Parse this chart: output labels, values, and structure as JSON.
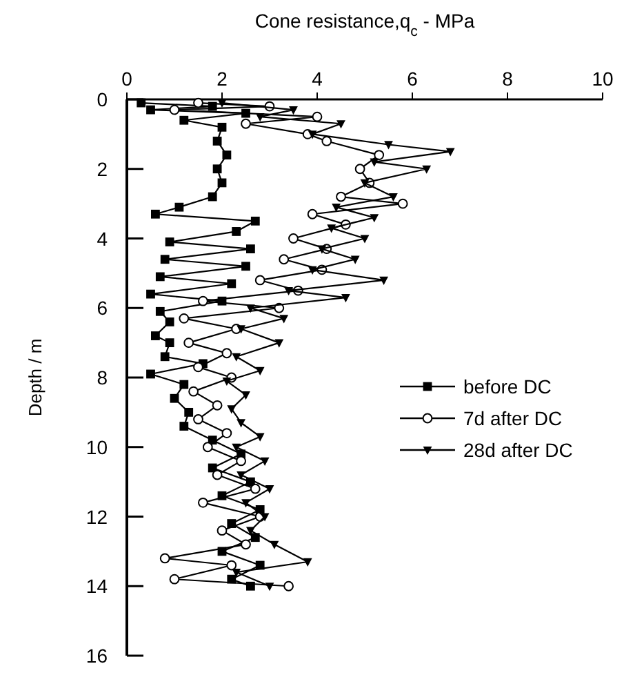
{
  "chart_data": {
    "type": "line",
    "xlabel": "Cone resistance,q$_{c}$ - MPa",
    "ylabel": "Depth / m",
    "xlim": [
      0,
      10
    ],
    "xticks": [
      0,
      2,
      4,
      6,
      8,
      10
    ],
    "ylim": [
      16,
      0
    ],
    "yticks": [
      0,
      2,
      4,
      6,
      8,
      10,
      12,
      14,
      16
    ],
    "legend": "right",
    "line_style": "solid",
    "series": [
      {
        "name": "before DC",
        "color": "#000000",
        "marker": "square",
        "x": [
          0.3,
          1.8,
          0.5,
          2.5,
          1.2,
          2.0,
          1.9,
          2.1,
          1.9,
          2.0,
          1.8,
          1.1,
          0.6,
          2.7,
          2.3,
          0.9,
          2.6,
          0.8,
          2.5,
          0.7,
          2.2,
          0.5,
          2.0,
          0.7,
          0.9,
          0.6,
          0.9,
          0.8,
          1.6,
          0.5,
          1.2,
          1.0,
          1.3,
          1.2,
          1.8,
          2.4,
          1.8,
          2.6,
          2.0,
          2.8,
          2.2,
          2.7,
          2.0,
          2.8,
          2.2,
          2.6
        ],
        "values": [
          0.1,
          0.2,
          0.3,
          0.4,
          0.6,
          0.8,
          1.2,
          1.6,
          2.0,
          2.4,
          2.8,
          3.1,
          3.3,
          3.5,
          3.8,
          4.1,
          4.3,
          4.6,
          4.8,
          5.1,
          5.3,
          5.6,
          5.8,
          6.1,
          6.4,
          6.8,
          7.0,
          7.4,
          7.6,
          7.9,
          8.2,
          8.6,
          9.0,
          9.4,
          9.8,
          10.2,
          10.6,
          11.0,
          11.4,
          11.8,
          12.2,
          12.6,
          13.0,
          13.4,
          13.8,
          14.0
        ]
      },
      {
        "name": "7d after DC",
        "color": "#000000",
        "marker": "circle",
        "x": [
          1.5,
          3.0,
          1.0,
          4.0,
          2.5,
          3.8,
          4.2,
          5.3,
          4.9,
          5.1,
          4.5,
          5.8,
          3.9,
          4.6,
          3.5,
          4.2,
          3.3,
          4.1,
          2.8,
          3.6,
          1.6,
          3.2,
          1.2,
          2.3,
          1.3,
          2.1,
          1.5,
          2.2,
          1.4,
          1.9,
          1.5,
          2.1,
          1.7,
          2.4,
          1.9,
          2.7,
          1.6,
          2.8,
          2.0,
          2.5,
          0.8,
          2.2,
          1.0,
          3.4
        ],
        "values": [
          0.1,
          0.2,
          0.3,
          0.5,
          0.7,
          1.0,
          1.2,
          1.6,
          2.0,
          2.4,
          2.8,
          3.0,
          3.3,
          3.6,
          4.0,
          4.3,
          4.6,
          4.9,
          5.2,
          5.5,
          5.8,
          6.0,
          6.3,
          6.6,
          7.0,
          7.3,
          7.7,
          8.0,
          8.4,
          8.8,
          9.2,
          9.6,
          10.0,
          10.4,
          10.8,
          11.2,
          11.6,
          12.0,
          12.4,
          12.8,
          13.2,
          13.4,
          13.8,
          14.0
        ]
      },
      {
        "name": "28d after DC",
        "color": "#000000",
        "marker": "triangle",
        "x": [
          2.0,
          3.5,
          2.8,
          4.5,
          3.9,
          5.5,
          6.8,
          5.2,
          6.3,
          5.0,
          5.6,
          4.4,
          5.2,
          4.3,
          5.0,
          4.1,
          4.8,
          3.9,
          5.4,
          3.4,
          4.6,
          2.6,
          3.3,
          2.4,
          3.2,
          2.3,
          2.8,
          2.1,
          2.5,
          2.2,
          2.4,
          2.8,
          2.3,
          2.9,
          2.4,
          3.0,
          2.5,
          2.9,
          2.6,
          3.1,
          3.8,
          2.3,
          3.0
        ],
        "values": [
          0.1,
          0.3,
          0.5,
          0.7,
          1.0,
          1.3,
          1.5,
          1.8,
          2.0,
          2.4,
          2.8,
          3.1,
          3.4,
          3.7,
          4.0,
          4.3,
          4.6,
          4.9,
          5.2,
          5.5,
          5.7,
          6.0,
          6.3,
          6.6,
          7.0,
          7.4,
          7.8,
          8.1,
          8.5,
          8.9,
          9.3,
          9.7,
          10.0,
          10.4,
          10.8,
          11.2,
          11.6,
          12.0,
          12.4,
          12.8,
          13.3,
          13.6,
          14.0
        ]
      }
    ]
  }
}
